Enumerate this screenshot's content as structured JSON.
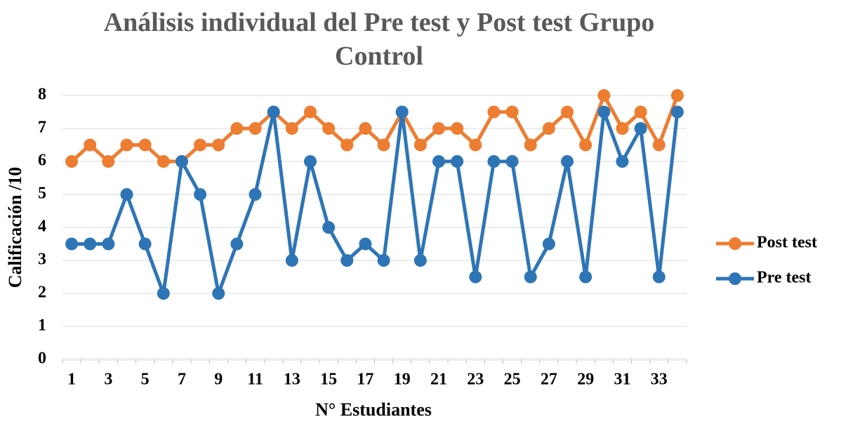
{
  "chart_data": {
    "type": "line",
    "title": "Análisis individual del Pre test y Post test Grupo Control",
    "x_label": "N° Estudiantes",
    "y_label": "Calificación /10",
    "categories": [
      1,
      null,
      3,
      null,
      5,
      null,
      7,
      null,
      9,
      null,
      11,
      null,
      13,
      null,
      15,
      null,
      17,
      null,
      19,
      null,
      21,
      null,
      23,
      null,
      25,
      null,
      27,
      null,
      29,
      null,
      31,
      null,
      33,
      null
    ],
    "series": [
      {
        "name": "Post test",
        "color": "#ed7d31",
        "values": [
          6,
          6.5,
          6,
          6.5,
          6.5,
          6,
          6,
          6.5,
          6.5,
          7,
          7,
          7.5,
          7,
          7.5,
          7,
          6.5,
          7,
          6.5,
          7.5,
          6.5,
          7,
          7,
          6.5,
          7.5,
          7.5,
          6.5,
          7,
          7.5,
          6.5,
          8,
          7,
          7.5,
          6.5,
          8
        ]
      },
      {
        "name": "Pre test",
        "color": "#2e75b6",
        "values": [
          3.5,
          3.5,
          3.5,
          5,
          3.5,
          2,
          6,
          5,
          2,
          3.5,
          5,
          7.5,
          3,
          6,
          4,
          3,
          3.5,
          3,
          7.5,
          3,
          6,
          6,
          2.5,
          6,
          6,
          2.5,
          3.5,
          6,
          2.5,
          7.5,
          6,
          7,
          2.5,
          7.5
        ]
      }
    ],
    "ylim": [
      0,
      8
    ],
    "yticks": [
      0,
      1,
      2,
      3,
      4,
      5,
      6,
      7,
      8
    ],
    "grid": true,
    "legend": "right"
  }
}
